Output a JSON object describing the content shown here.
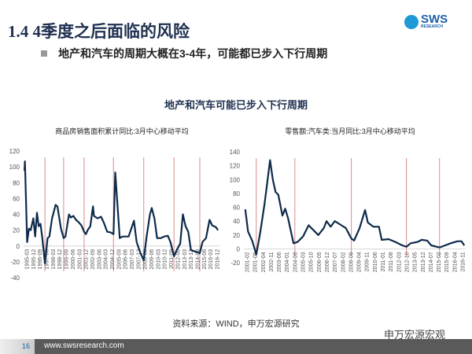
{
  "header": {
    "title": "1.4 4季度之后面临的风险",
    "logo_text": "SWS",
    "logo_sub": "RESEARCH"
  },
  "bullet": "地产和汽车的周期大概在3-4年，可能都已步入下行周期",
  "charts_title": "地产和汽车可能已步入下行周期",
  "source": "资料来源：WIND，申万宏源研究",
  "watermark": "申万宏源宏观",
  "footer": {
    "page": "16",
    "url": "www.swsresearch.com"
  },
  "colors": {
    "line": "#0d2a4a",
    "marker": "#d98c8c",
    "title": "#1f3050"
  },
  "chart_data": [
    {
      "type": "line",
      "title": "商品房销售面积累计同比:3月中心移动平均",
      "ylim": [
        -40,
        120
      ],
      "yticks": [
        -40,
        -20,
        0,
        20,
        40,
        60,
        80,
        100,
        120
      ],
      "xlim": [
        1995.1,
        2017.2
      ],
      "xticklabels": [
        "1995-03",
        "1995-12",
        "1996-09",
        "1997-06",
        "1998-03",
        "1998-12",
        "1999-09",
        "2000-06",
        "2001-03",
        "2001-12",
        "2002-09",
        "2003-06",
        "2004-03",
        "2004-12",
        "2005-09",
        "2006-06",
        "2007-03",
        "2007-12",
        "2008-09",
        "2009-06",
        "2010-03",
        "2010-12",
        "2011-09",
        "2012-06",
        "2013-03",
        "2013-12",
        "2014-09",
        "2015-06",
        "2016-03",
        "2016-12"
      ],
      "x": [
        1995.2,
        1995.25,
        1995.5,
        1995.7,
        1995.9,
        1996.2,
        1996.4,
        1996.6,
        1996.8,
        1997.0,
        1997.2,
        1997.5,
        1997.8,
        1998.0,
        1998.3,
        1998.7,
        1998.9,
        1999.3,
        1999.6,
        1999.8,
        2000.2,
        2000.4,
        2000.7,
        2001.0,
        2001.3,
        2001.6,
        2001.9,
        2002.1,
        2002.3,
        2002.6,
        2002.9,
        2003.0,
        2003.4,
        2003.8,
        2004.1,
        2004.5,
        2004.9,
        2005.2,
        2005.4,
        2005.6,
        2005.9,
        2006.2,
        2006.5,
        2006.9,
        2007.2,
        2007.5,
        2007.8,
        2008.2,
        2008.6,
        2008.9,
        2009.3,
        2009.5,
        2009.8,
        2010.1,
        2010.5,
        2010.9,
        2011.3,
        2011.6,
        2012.0,
        2012.3,
        2012.7,
        2013.0,
        2013.3,
        2013.6,
        2013.9,
        2014.4,
        2014.9,
        2015.2,
        2015.6,
        2016.0,
        2016.3,
        2016.7,
        2016.95
      ],
      "y": [
        95,
        107,
        5,
        22,
        20,
        35,
        12,
        42,
        25,
        28,
        10,
        -22,
        10,
        12,
        35,
        52,
        50,
        22,
        10,
        12,
        40,
        36,
        38,
        33,
        30,
        26,
        18,
        15,
        20,
        25,
        50,
        38,
        35,
        37,
        30,
        18,
        17,
        15,
        93,
        60,
        10,
        12,
        12,
        12,
        22,
        32,
        5,
        -8,
        -18,
        10,
        40,
        48,
        35,
        10,
        10,
        12,
        13,
        5,
        -13,
        -5,
        3,
        40,
        25,
        18,
        -5,
        -7,
        -9,
        5,
        10,
        33,
        26,
        24,
        20
      ],
      "markers": [
        1997.5,
        1999.6,
        2001.9,
        2005.2,
        2008.6,
        2012.0,
        2014.9
      ]
    },
    {
      "type": "line",
      "title": "零售额:汽车类:当月同比:3月中心移动平均",
      "ylim": [
        -20,
        140
      ],
      "yticks": [
        -20,
        0,
        20,
        40,
        60,
        80,
        100,
        120,
        140
      ],
      "xlim": [
        2001.0,
        2017.1
      ],
      "xticklabels": [
        "2001-02",
        "2001-09",
        "2002-04",
        "2002-11",
        "2003-06",
        "2004-01",
        "2004-08",
        "2005-03",
        "2005-10",
        "2006-05",
        "2006-12",
        "2007-07",
        "2008-02",
        "2008-09",
        "2009-04",
        "2009-11",
        "2010-06",
        "2011-01",
        "2011-08",
        "2012-03",
        "2012-10",
        "2013-05",
        "2013-12",
        "2014-07",
        "2015-02",
        "2015-09",
        "2016-04",
        "2016-11"
      ],
      "x": [
        2001.1,
        2001.3,
        2001.6,
        2001.9,
        2002.2,
        2002.5,
        2002.9,
        2003.1,
        2003.3,
        2003.5,
        2003.8,
        2004.0,
        2004.2,
        2004.6,
        2004.9,
        2005.3,
        2005.7,
        2006.0,
        2006.4,
        2006.8,
        2007.0,
        2007.3,
        2007.6,
        2008.0,
        2008.4,
        2008.8,
        2009.0,
        2009.4,
        2009.8,
        2010.0,
        2010.4,
        2010.8,
        2011.0,
        2011.5,
        2012.0,
        2012.5,
        2012.8,
        2013.1,
        2013.6,
        2013.9,
        2014.3,
        2014.6,
        2015.0,
        2015.2,
        2015.6,
        2016.0,
        2016.5,
        2016.8,
        2017.0
      ],
      "y": [
        57,
        25,
        12,
        -8,
        25,
        65,
        128,
        100,
        82,
        78,
        48,
        58,
        45,
        8,
        10,
        18,
        34,
        28,
        20,
        30,
        40,
        32,
        40,
        35,
        30,
        15,
        12,
        30,
        56,
        38,
        32,
        32,
        13,
        14,
        10,
        5,
        3,
        8,
        10,
        13,
        12,
        5,
        3,
        2,
        5,
        8,
        11,
        11,
        5
      ],
      "markers": [
        2001.9,
        2004.7,
        2008.8,
        2012.8,
        2015.2
      ]
    }
  ]
}
